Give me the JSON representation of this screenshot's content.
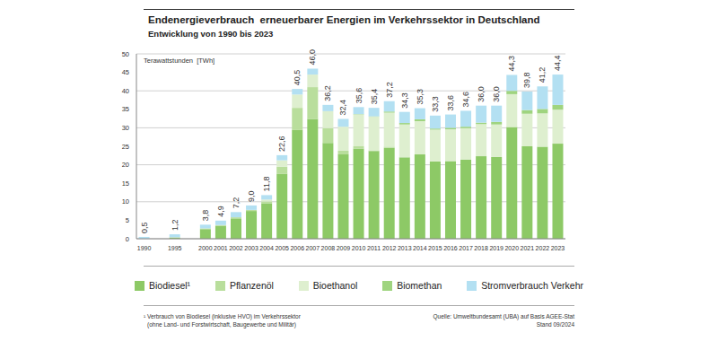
{
  "chart_data": {
    "type": "bar",
    "title": "Endenergieverbrauch  erneuerbarer Energien im Verkehrssektor in Deutschland",
    "subtitle": "Entwicklung von 1990 bis 2023",
    "y_label": "Terawattstunden  [TWh]",
    "stacked": true,
    "grid": true,
    "categories": [
      "1990",
      null,
      "1995",
      null,
      "2000",
      "2001",
      "2002",
      "2003",
      "2004",
      "2005",
      "2006",
      "2007",
      "2008",
      "2009",
      "2010",
      "2011",
      "2012",
      "2013",
      "2014",
      "2015",
      "2016",
      "2017",
      "2018",
      "2019",
      "2020",
      "2021",
      "2022",
      "2023"
    ],
    "series": [
      {
        "name": "Biodiesel¹",
        "color": "#8dc966",
        "values": [
          0,
          null,
          0.3,
          null,
          2.6,
          3.5,
          5.5,
          7.5,
          9.6,
          17.6,
          29.4,
          32.4,
          25.9,
          22.8,
          24.4,
          23.7,
          24.6,
          22.0,
          22.8,
          20.9,
          21.0,
          21.4,
          22.3,
          22.1,
          30.2,
          25.0,
          24.9,
          25.7
        ]
      },
      {
        "name": "Pflanzenöl",
        "color": "#b9de9c",
        "values": [
          0,
          null,
          0.1,
          null,
          0.2,
          0.2,
          0.3,
          0.3,
          0.5,
          1.9,
          6.0,
          8.6,
          4.0,
          1.0,
          0.6,
          0.2,
          0.3,
          0,
          0,
          0,
          0,
          0,
          0,
          0,
          0,
          0,
          0,
          0
        ]
      },
      {
        "name": "Bioethanol",
        "color": "#deefcf",
        "values": [
          0,
          null,
          0,
          null,
          0,
          0,
          0,
          0,
          0.5,
          1.7,
          3.6,
          3.4,
          4.6,
          6.5,
          8.6,
          9.1,
          9.2,
          8.9,
          9.0,
          8.6,
          8.6,
          8.5,
          8.7,
          8.8,
          8.9,
          8.8,
          9.0,
          9.2
        ]
      },
      {
        "name": "Biomethan",
        "color": "#9fd47f",
        "values": [
          0,
          null,
          0,
          null,
          0,
          0,
          0,
          0,
          0,
          0,
          0,
          0,
          0,
          0,
          0.1,
          0.1,
          0.3,
          0.4,
          0.5,
          0.3,
          0.4,
          0.4,
          0.4,
          0.7,
          0.9,
          1.0,
          1.2,
          1.3
        ]
      },
      {
        "name": "Stromverbrauch Verkehr",
        "color": "#b3e0f2",
        "values": [
          0.5,
          null,
          0.8,
          null,
          1.0,
          1.2,
          1.4,
          1.2,
          1.2,
          1.4,
          1.5,
          1.6,
          1.7,
          2.1,
          1.9,
          2.3,
          2.8,
          3.0,
          3.0,
          3.5,
          3.6,
          4.3,
          4.6,
          4.4,
          4.3,
          5.0,
          6.1,
          8.2
        ]
      }
    ],
    "totals": [
      0.5,
      null,
      1.2,
      null,
      3.8,
      4.9,
      7.2,
      9.0,
      11.8,
      22.6,
      40.5,
      46.0,
      36.2,
      32.4,
      35.6,
      35.4,
      37.2,
      34.3,
      35.3,
      33.3,
      33.6,
      34.6,
      36.0,
      36.0,
      44.3,
      39.8,
      41.2,
      44.4
    ],
    "total_labels": [
      "0,5",
      null,
      "1,2",
      null,
      "3,8",
      "4,9",
      "7,2",
      "9,0",
      "11,8",
      "22,6",
      "40,5",
      "46,0",
      "36,2",
      "32,4",
      "35,6",
      "35,4",
      "37,2",
      "34,3",
      "35,3",
      "33,3",
      "33,6",
      "34,6",
      "36,0",
      "36,0",
      "44,3",
      "39,8",
      "41,2",
      "44,4"
    ],
    "ylim": [
      0,
      50
    ],
    "yticks": [
      0,
      5,
      10,
      15,
      20,
      25,
      30,
      35,
      40,
      45,
      50
    ],
    "footnote": [
      "¹ Verbrauch von Biodiesel (inklusive HVO) im Verkehrssektor",
      "(ohne Land- und Forstwirtschaft, Baugewerbe und Militär)"
    ],
    "source": [
      "Quelle: Umweltbundesamt (UBA) auf Basis AGEE-Stat",
      "Stand 09/2024"
    ]
  }
}
